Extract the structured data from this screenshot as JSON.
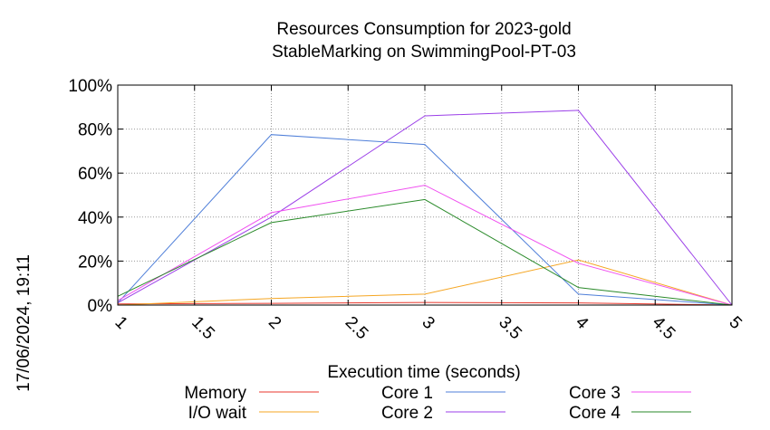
{
  "chart_data": {
    "type": "line",
    "title": "Resources Consumption for 2023-gold",
    "subtitle": "StableMarking on SwimmingPool-PT-03",
    "xlabel": "Execution time (seconds)",
    "ylabel": "",
    "timestamp": "17/06/2024, 19:11",
    "xlim": [
      1,
      5
    ],
    "ylim": [
      0,
      100
    ],
    "grid": true,
    "legend_position": "bottom",
    "x_ticks": [
      1,
      1.5,
      2,
      2.5,
      3,
      3.5,
      4,
      4.5,
      5
    ],
    "x_tick_labels": [
      "1",
      "1.5",
      "2",
      "2.5",
      "3",
      "3.5",
      "4",
      "4.5",
      "5"
    ],
    "y_ticks": [
      0,
      20,
      40,
      60,
      80,
      100
    ],
    "y_tick_labels": [
      "0%",
      "20%",
      "40%",
      "60%",
      "80%",
      "100%"
    ],
    "x": [
      1,
      2,
      3,
      4,
      5
    ],
    "series": [
      {
        "name": "Memory",
        "color": "#e8372c",
        "values": [
          0.5,
          0.8,
          1.2,
          1.0,
          0
        ]
      },
      {
        "name": "I/O wait",
        "color": "#f5a623",
        "values": [
          0,
          3,
          5,
          20.5,
          0
        ]
      },
      {
        "name": "Core 1",
        "color": "#4f7fd9",
        "values": [
          1,
          77.5,
          73,
          5,
          0
        ]
      },
      {
        "name": "Core 2",
        "color": "#9b3fe8",
        "values": [
          1,
          40,
          86,
          88.5,
          0
        ]
      },
      {
        "name": "Core 3",
        "color": "#f04ff0",
        "values": [
          2,
          42,
          54.5,
          19,
          0
        ]
      },
      {
        "name": "Core 4",
        "color": "#2a8a2a",
        "values": [
          4,
          37.5,
          48,
          8,
          0
        ]
      }
    ]
  }
}
